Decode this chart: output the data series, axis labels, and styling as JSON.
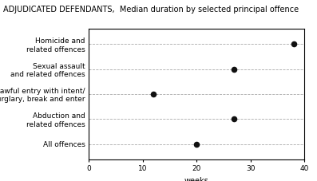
{
  "title": "ADJUDICATED DEFENDANTS,  Median duration by selected principal offence",
  "categories": [
    "Homicide and\nrelated offences",
    "Sexual assault\nand related offences",
    "Unlawful entry with intent/\nburglary, break and enter",
    "Abduction and\nrelated offences",
    "All offences"
  ],
  "values": [
    38,
    27,
    12,
    27,
    20
  ],
  "xlabel": "weeks",
  "xlim": [
    0,
    40
  ],
  "xticks": [
    0,
    10,
    20,
    30,
    40
  ],
  "dot_color": "#111111",
  "dot_size": 30,
  "grid_color": "#aaaaaa",
  "title_fontsize": 7,
  "label_fontsize": 6.5,
  "tick_fontsize": 6.5,
  "xlabel_fontsize": 7
}
